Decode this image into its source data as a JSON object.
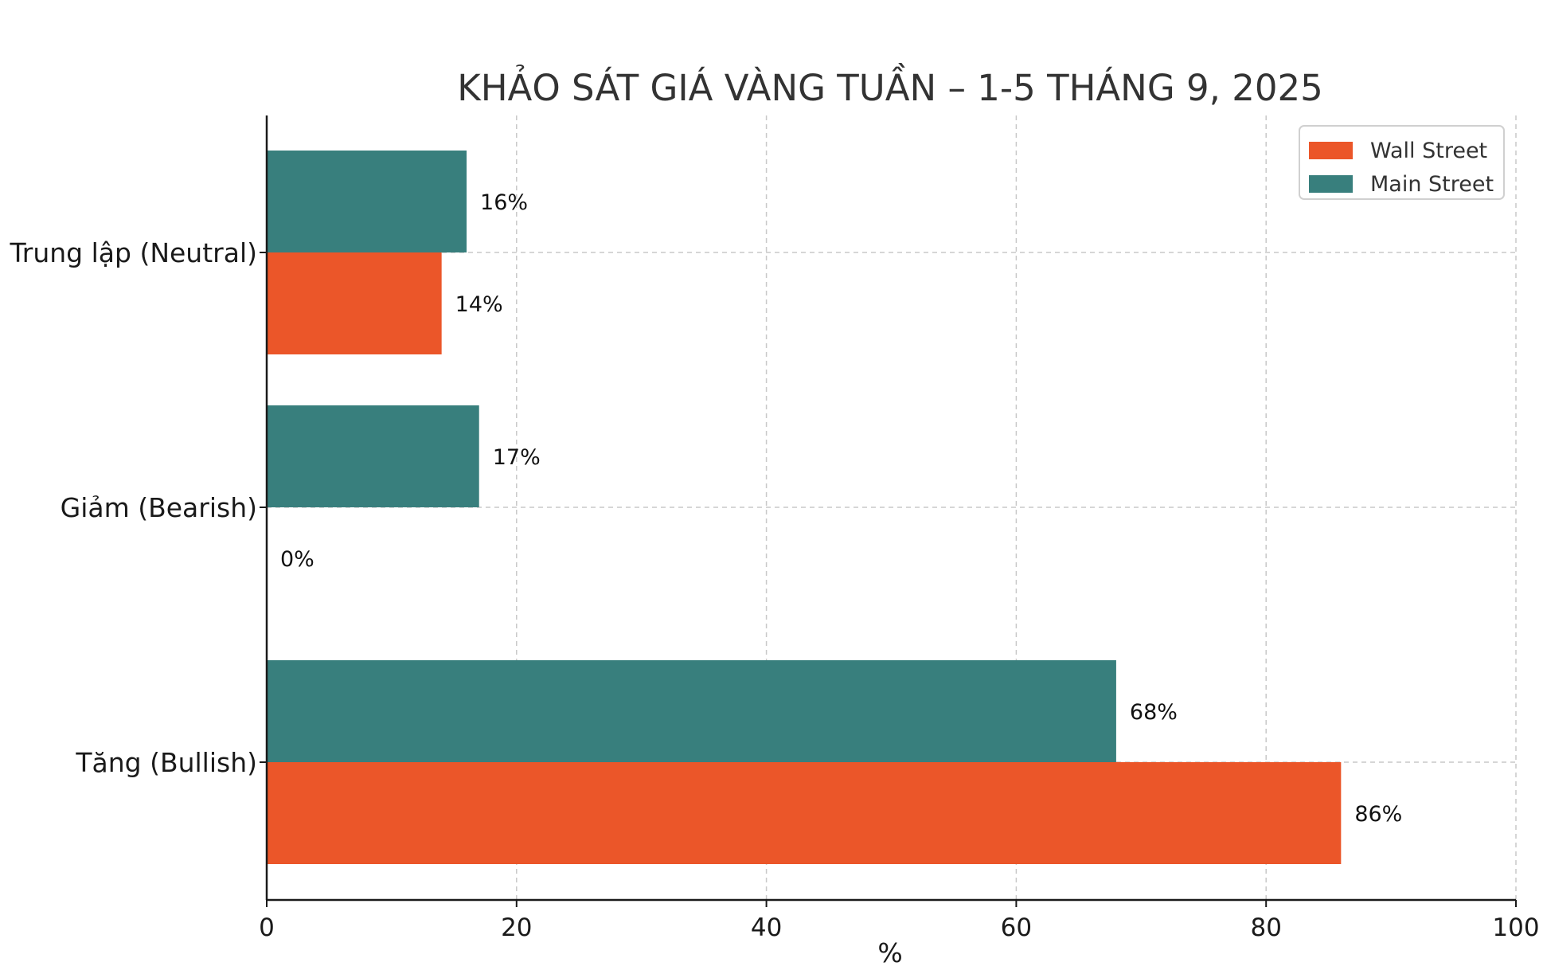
{
  "chart_data": {
    "type": "bar",
    "orientation": "horizontal",
    "title": "KHẢO SÁT GIÁ VÀNG TUẦN – 1-5 THÁNG 9, 2025",
    "xlabel": "%",
    "ylabel": "",
    "xlim": [
      0,
      100
    ],
    "x_ticks": [
      "0",
      "20",
      "40",
      "60",
      "80",
      "100"
    ],
    "categories": [
      "Tăng (Bullish)",
      "Giảm (Bearish)",
      "Trung lập (Neutral)"
    ],
    "series": [
      {
        "name": "Wall Street",
        "color": "#eb5629",
        "values": [
          86,
          0,
          14
        ],
        "labels": [
          "86%",
          "0%",
          "14%"
        ]
      },
      {
        "name": "Main Street",
        "color": "#387f7d",
        "values": [
          68,
          17,
          16
        ],
        "labels": [
          "68%",
          "17%",
          "16%"
        ]
      }
    ],
    "grid": true,
    "legend_position": "top-right"
  }
}
